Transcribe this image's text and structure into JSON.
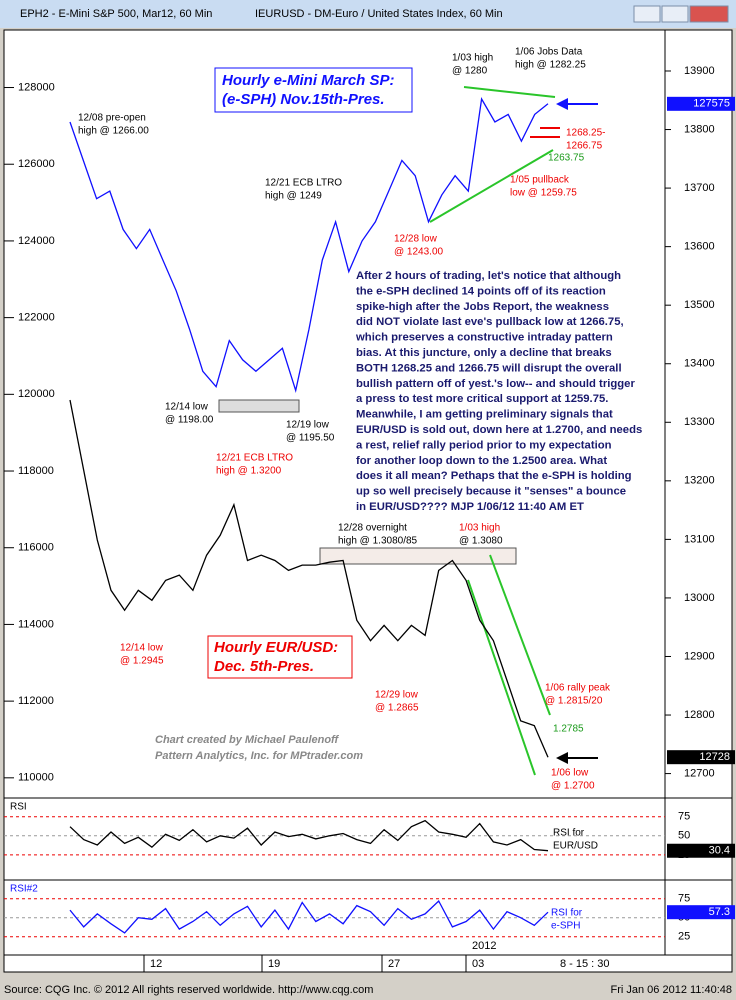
{
  "window": {
    "title_left": "EPH2 - E-Mini S&P 500, Mar12, 60 Min",
    "title_right": "IEURUSD - DM-Euro / United States Index, 60 Min"
  },
  "status": {
    "source": "Source: CQG Inc. © 2012 All rights reserved worldwide. http://www.cqg.com",
    "timestamp": "Fri Jan 06 2012 11:40:48"
  },
  "boxes": {
    "es": [
      "Hourly e-Mini March SP:",
      "(e-SPH) Nov.15th-Pres."
    ],
    "eur": [
      "Hourly EUR/USD:",
      "Dec. 5th-Pres."
    ]
  },
  "credits": [
    "Chart created by Michael Paulenoff",
    "Pattern Analytics, Inc. for MPtrader.com"
  ],
  "commentary": [
    "After 2 hours of trading, let's notice that although",
    "the e-SPH declined 14 points off of its reaction",
    "spike-high after the Jobs Report, the weakness",
    "did NOT violate last eve's pullback low at 1266.75,",
    "which preserves a constructive intraday pattern",
    "bias. At this juncture, only a decline that breaks",
    "BOTH 1268.25 and 1266.75 will disrupt the overall",
    "bullish pattern off of yest.'s low-- and should trigger",
    "a press to test more critical support at 1259.75.",
    "Meanwhile, I am getting preliminary signals that",
    "EUR/USD is sold out, down here at 1.2700, and needs",
    "a rest, relief rally period prior to my expectation",
    "for another loop down to the 1.2500 area. What",
    "does it all mean? Pethaps that the e-SPH is holding",
    "up so well precisely because it \"senses\" a bounce",
    "in EUR/USD????  MJP 1/06/12 11:40 AM ET"
  ],
  "annotations": [
    "1/03 high",
    "@ 1280",
    "1/06 Jobs Data",
    "high @ 1282.25",
    "12/08 pre-open",
    "high @ 1266.00",
    "12/21 ECB LTRO",
    "high @ 1249",
    "1268.25-",
    "1266.75",
    "1263.75",
    "1/05 pullback",
    "low @ 1259.75",
    "12/28 low",
    "@ 1243.00",
    "12/14 low",
    "@ 1198.00",
    "12/19 low",
    "@ 1195.50",
    "12/21 ECB LTRO",
    "high @ 1.3200",
    "12/28 overnight",
    "high @ 1.3080/85",
    "1/03 high",
    "@ 1.3080",
    "12/14 low",
    "@ 1.2945",
    "12/29 low",
    "@ 1.2865",
    "1/06 rally peak",
    "@ 1.2815/20",
    "1.2785",
    "1/06 low",
    "@ 1.2700",
    "RSI for",
    "EUR/USD",
    "RSI for",
    "e-SPH"
  ],
  "time_axis": {
    "labels": [
      "12",
      "19",
      "27",
      "03"
    ],
    "session": "8 - 15 : 30",
    "year": "2012"
  },
  "chart_data": [
    {
      "type": "line",
      "ylim": [
        109500,
        129500
      ],
      "yticks": [
        128000,
        126000,
        124000,
        122000,
        120000,
        118000,
        116000,
        114000,
        112000,
        110000
      ],
      "y2lim": [
        12660,
        13970
      ],
      "y2ticks": [
        13900,
        13800,
        13700,
        13600,
        13500,
        13400,
        13300,
        13200,
        13100,
        13000,
        12900,
        12800,
        12700
      ],
      "series": [
        {
          "color": "#1010ff",
          "last": 127575,
          "values": [
            127100,
            126100,
            125100,
            125300,
            124300,
            123800,
            124300,
            123500,
            122700,
            121700,
            120600,
            120200,
            121400,
            120900,
            120600,
            120900,
            121200,
            120100,
            121700,
            123500,
            124500,
            123200,
            124000,
            124500,
            125300,
            126100,
            125700,
            124500,
            125200,
            125700,
            125300,
            127700,
            127100,
            127300,
            126600,
            127300,
            127575
          ]
        },
        {
          "color": "#000000",
          "axis": "y2",
          "last": 12728,
          "values": [
            13338,
            13218,
            13099,
            13013,
            12979,
            13013,
            12996,
            13030,
            13039,
            13013,
            13073,
            13107,
            13159,
            13064,
            13073,
            13064,
            13047,
            13056,
            13056,
            13061,
            13064,
            12962,
            12927,
            12953,
            12927,
            12953,
            12936,
            13047,
            13064,
            13030,
            12962,
            12927,
            12859,
            12790,
            12782,
            12728
          ]
        }
      ]
    },
    {
      "type": "line",
      "title": "RSI",
      "ylim": [
        -8,
        97
      ],
      "yticks": [
        75,
        50,
        25
      ],
      "series": [
        {
          "color": "#000000",
          "last": 30.4,
          "values": [
            62,
            45,
            38,
            55,
            40,
            48,
            35,
            52,
            44,
            58,
            42,
            50,
            47,
            60,
            38,
            55,
            49,
            52,
            46,
            50,
            53,
            45,
            40,
            58,
            44,
            62,
            70,
            55,
            52,
            48,
            66,
            42,
            38,
            45,
            32,
            30.4
          ]
        }
      ]
    },
    {
      "type": "line",
      "title": "RSI#2",
      "ylim": [
        1,
        97
      ],
      "yticks": [
        75,
        50,
        25
      ],
      "series": [
        {
          "color": "#1010ff",
          "last": 57.3,
          "values": [
            60,
            38,
            55,
            42,
            30,
            50,
            48,
            62,
            35,
            45,
            58,
            40,
            55,
            65,
            38,
            60,
            35,
            70,
            45,
            55,
            42,
            66,
            58,
            40,
            62,
            48,
            55,
            72,
            38,
            45,
            60,
            35,
            58,
            50,
            40,
            57.3
          ]
        }
      ]
    }
  ]
}
